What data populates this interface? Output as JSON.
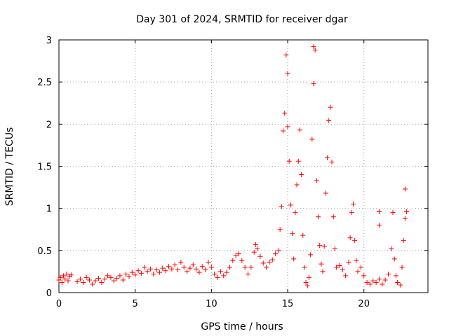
{
  "chart_data": {
    "type": "scatter",
    "title": "Day 301 of 2024, SRMTID for receiver dgar",
    "xlabel": "GPS time / hours",
    "ylabel": "SRMTID / TECUs",
    "xlim": [
      0,
      24.2
    ],
    "ylim": [
      0,
      3
    ],
    "x_ticks": [
      0,
      5,
      10,
      15,
      20
    ],
    "y_ticks": [
      0,
      0.5,
      1,
      1.5,
      2,
      2.5,
      3
    ],
    "x_tick_labels": [
      "0",
      "5",
      "10",
      "15",
      "20"
    ],
    "y_tick_labels": [
      "0",
      "0.5",
      "1",
      "1.5",
      "2",
      "2.5",
      "3"
    ],
    "grid": true,
    "marker": "+",
    "color": "#ff0000",
    "series": [
      {
        "name": "SRMTID",
        "points": [
          [
            0.0,
            0.15
          ],
          [
            0.1,
            0.18
          ],
          [
            0.2,
            0.12
          ],
          [
            0.3,
            0.2
          ],
          [
            0.4,
            0.16
          ],
          [
            0.5,
            0.22
          ],
          [
            0.6,
            0.14
          ],
          [
            0.7,
            0.19
          ],
          [
            0.8,
            0.21
          ],
          [
            1.2,
            0.13
          ],
          [
            1.4,
            0.16
          ],
          [
            1.6,
            0.12
          ],
          [
            1.8,
            0.18
          ],
          [
            2.0,
            0.15
          ],
          [
            2.2,
            0.1
          ],
          [
            2.4,
            0.14
          ],
          [
            2.6,
            0.17
          ],
          [
            2.8,
            0.12
          ],
          [
            3.0,
            0.16
          ],
          [
            3.2,
            0.2
          ],
          [
            3.4,
            0.18
          ],
          [
            3.6,
            0.14
          ],
          [
            3.8,
            0.17
          ],
          [
            4.0,
            0.2
          ],
          [
            4.2,
            0.15
          ],
          [
            4.4,
            0.22
          ],
          [
            4.6,
            0.19
          ],
          [
            4.8,
            0.24
          ],
          [
            5.0,
            0.21
          ],
          [
            5.2,
            0.26
          ],
          [
            5.4,
            0.23
          ],
          [
            5.6,
            0.3
          ],
          [
            5.8,
            0.25
          ],
          [
            6.0,
            0.28
          ],
          [
            6.2,
            0.22
          ],
          [
            6.4,
            0.27
          ],
          [
            6.6,
            0.24
          ],
          [
            6.8,
            0.29
          ],
          [
            7.0,
            0.26
          ],
          [
            7.2,
            0.31
          ],
          [
            7.4,
            0.28
          ],
          [
            7.6,
            0.33
          ],
          [
            7.8,
            0.27
          ],
          [
            8.0,
            0.36
          ],
          [
            8.2,
            0.3
          ],
          [
            8.4,
            0.25
          ],
          [
            8.6,
            0.29
          ],
          [
            8.8,
            0.33
          ],
          [
            9.0,
            0.28
          ],
          [
            9.2,
            0.24
          ],
          [
            9.4,
            0.31
          ],
          [
            9.6,
            0.27
          ],
          [
            9.8,
            0.36
          ],
          [
            10.0,
            0.3
          ],
          [
            10.2,
            0.22
          ],
          [
            10.4,
            0.18
          ],
          [
            10.6,
            0.25
          ],
          [
            10.8,
            0.2
          ],
          [
            11.0,
            0.24
          ],
          [
            11.2,
            0.3
          ],
          [
            11.4,
            0.38
          ],
          [
            11.6,
            0.44
          ],
          [
            11.8,
            0.46
          ],
          [
            12.0,
            0.38
          ],
          [
            12.2,
            0.3
          ],
          [
            12.4,
            0.22
          ],
          [
            12.6,
            0.3
          ],
          [
            12.8,
            0.48
          ],
          [
            12.9,
            0.57
          ],
          [
            13.0,
            0.52
          ],
          [
            13.2,
            0.43
          ],
          [
            13.4,
            0.35
          ],
          [
            13.6,
            0.3
          ],
          [
            13.8,
            0.36
          ],
          [
            14.0,
            0.39
          ],
          [
            14.2,
            0.46
          ],
          [
            14.4,
            0.5
          ],
          [
            14.5,
            0.75
          ],
          [
            14.6,
            1.02
          ],
          [
            14.7,
            1.92
          ],
          [
            14.8,
            2.13
          ],
          [
            14.9,
            2.82
          ],
          [
            15.0,
            2.6
          ],
          [
            15.0,
            1.97
          ],
          [
            15.1,
            1.56
          ],
          [
            15.2,
            1.04
          ],
          [
            15.3,
            0.7
          ],
          [
            15.4,
            0.4
          ],
          [
            15.5,
            0.95
          ],
          [
            15.6,
            1.28
          ],
          [
            15.7,
            1.56
          ],
          [
            15.8,
            1.93
          ],
          [
            15.9,
            1.4
          ],
          [
            16.0,
            0.68
          ],
          [
            16.1,
            0.3
          ],
          [
            16.2,
            0.12
          ],
          [
            16.3,
            0.08
          ],
          [
            16.4,
            0.18
          ],
          [
            16.5,
            0.45
          ],
          [
            16.6,
            1.82
          ],
          [
            16.7,
            2.48
          ],
          [
            16.7,
            2.92
          ],
          [
            16.8,
            2.88
          ],
          [
            16.9,
            1.33
          ],
          [
            17.0,
            0.9
          ],
          [
            17.1,
            0.56
          ],
          [
            17.2,
            0.34
          ],
          [
            17.3,
            0.25
          ],
          [
            17.4,
            0.55
          ],
          [
            17.5,
            1.18
          ],
          [
            17.6,
            1.6
          ],
          [
            17.7,
            2.04
          ],
          [
            17.8,
            2.2
          ],
          [
            17.9,
            1.55
          ],
          [
            18.0,
            0.9
          ],
          [
            18.1,
            0.52
          ],
          [
            18.2,
            0.3
          ],
          [
            18.4,
            0.32
          ],
          [
            18.6,
            0.27
          ],
          [
            18.8,
            0.2
          ],
          [
            19.0,
            0.36
          ],
          [
            19.1,
            0.65
          ],
          [
            19.2,
            0.95
          ],
          [
            19.3,
            1.05
          ],
          [
            19.4,
            0.62
          ],
          [
            19.5,
            0.38
          ],
          [
            19.6,
            0.25
          ],
          [
            19.8,
            0.3
          ],
          [
            20.0,
            0.2
          ],
          [
            20.2,
            0.12
          ],
          [
            20.4,
            0.1
          ],
          [
            20.6,
            0.14
          ],
          [
            20.8,
            0.12
          ],
          [
            21.0,
            0.16
          ],
          [
            21.0,
            0.96
          ],
          [
            21.0,
            0.8
          ],
          [
            21.2,
            0.1
          ],
          [
            21.4,
            0.15
          ],
          [
            21.6,
            0.22
          ],
          [
            21.8,
            0.52
          ],
          [
            21.9,
            0.95
          ],
          [
            22.0,
            0.4
          ],
          [
            22.1,
            0.2
          ],
          [
            22.2,
            0.12
          ],
          [
            22.4,
            0.09
          ],
          [
            22.5,
            0.3
          ],
          [
            22.6,
            0.62
          ],
          [
            22.7,
            0.88
          ],
          [
            22.7,
            1.23
          ],
          [
            22.8,
            0.96
          ]
        ]
      }
    ]
  }
}
